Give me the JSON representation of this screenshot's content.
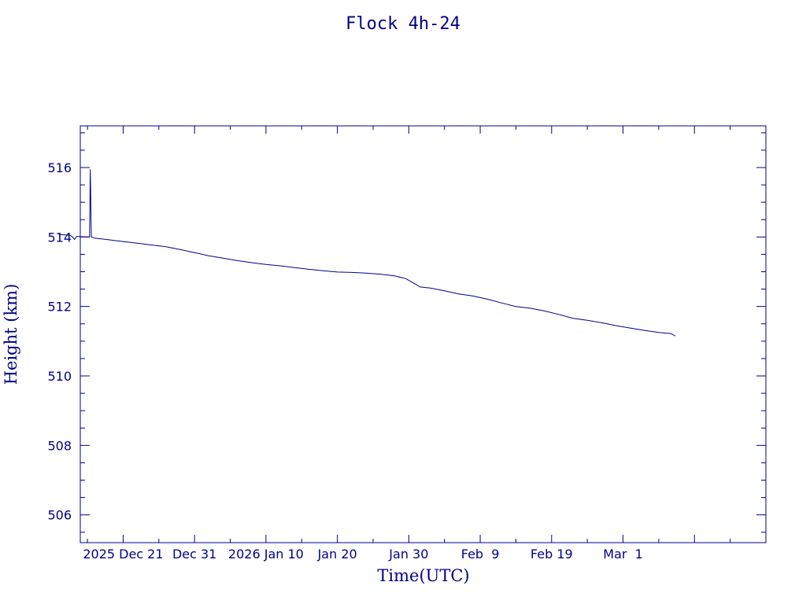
{
  "chart_data": {
    "type": "line",
    "title": "Flock 4h-24",
    "xlabel": "Time(UTC)",
    "ylabel": "Height (km)",
    "x_range_days": [
      -16,
      80
    ],
    "ylim": [
      505.2,
      517.2
    ],
    "x_ticks": [
      {
        "day": -16,
        "label": ""
      },
      {
        "day": -10,
        "label": "2025 Dec 21"
      },
      {
        "day": 0,
        "label": "Dec 31"
      },
      {
        "day": 10,
        "label": "2026 Jan 10"
      },
      {
        "day": 20,
        "label": "Jan 20"
      },
      {
        "day": 30,
        "label": "Jan 30"
      },
      {
        "day": 40,
        "label": "Feb  9"
      },
      {
        "day": 50,
        "label": "Feb 19"
      },
      {
        "day": 60,
        "label": "Mar  1"
      }
    ],
    "y_ticks": [
      506,
      508,
      510,
      512,
      514,
      516
    ],
    "color": "#00008b",
    "series": [
      {
        "name": "",
        "points": [
          [
            -19.0,
            514.07
          ],
          [
            -18.0,
            514.06
          ],
          [
            -17.4,
            514.05
          ],
          [
            -17.0,
            513.98
          ],
          [
            -16.8,
            513.93
          ],
          [
            -16.5,
            514.02
          ],
          [
            -16.0,
            514.01
          ],
          [
            -15.0,
            514.0
          ],
          [
            -14.7,
            514.0
          ],
          [
            -14.6,
            515.95
          ],
          [
            -14.55,
            515.3
          ],
          [
            -14.5,
            514.55
          ],
          [
            -14.45,
            514.0
          ],
          [
            -14.0,
            513.97
          ],
          [
            -12.0,
            513.92
          ],
          [
            -10.0,
            513.87
          ],
          [
            -8.0,
            513.82
          ],
          [
            -6.0,
            513.77
          ],
          [
            -4.0,
            513.72
          ],
          [
            -2.0,
            513.64
          ],
          [
            0.0,
            513.55
          ],
          [
            2.0,
            513.46
          ],
          [
            4.0,
            513.39
          ],
          [
            6.0,
            513.32
          ],
          [
            8.0,
            513.26
          ],
          [
            10.0,
            513.21
          ],
          [
            12.0,
            513.17
          ],
          [
            14.0,
            513.12
          ],
          [
            16.0,
            513.07
          ],
          [
            18.0,
            513.03
          ],
          [
            20.0,
            512.99
          ],
          [
            22.0,
            512.98
          ],
          [
            24.0,
            512.96
          ],
          [
            26.0,
            512.93
          ],
          [
            28.0,
            512.88
          ],
          [
            29.6,
            512.8
          ],
          [
            30.6,
            512.68
          ],
          [
            31.6,
            512.56
          ],
          [
            33.0,
            512.53
          ],
          [
            35.0,
            512.45
          ],
          [
            37.0,
            512.36
          ],
          [
            39.0,
            512.3
          ],
          [
            41.0,
            512.21
          ],
          [
            43.0,
            512.1
          ],
          [
            45.0,
            512.0
          ],
          [
            47.0,
            511.95
          ],
          [
            49.0,
            511.87
          ],
          [
            51.0,
            511.77
          ],
          [
            53.0,
            511.66
          ],
          [
            55.0,
            511.6
          ],
          [
            57.0,
            511.53
          ],
          [
            59.0,
            511.45
          ],
          [
            61.0,
            511.38
          ],
          [
            63.0,
            511.31
          ],
          [
            65.0,
            511.25
          ],
          [
            66.7,
            511.22
          ],
          [
            67.3,
            511.15
          ]
        ]
      }
    ]
  }
}
